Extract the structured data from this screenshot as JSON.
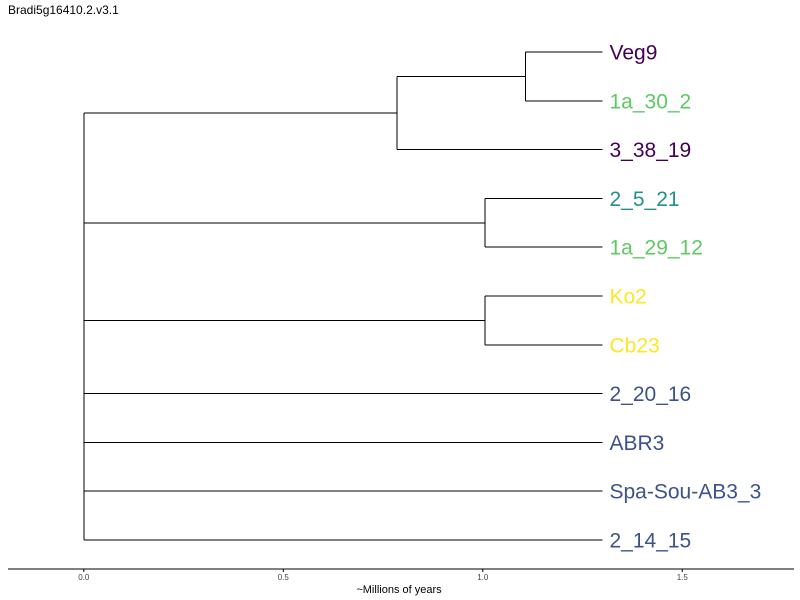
{
  "title": "Bradi5g16410.2.v3.1",
  "axis": {
    "xlabel": "~Millions of years",
    "ticks": [
      "0.0",
      "0.5",
      "1.0",
      "1.5"
    ],
    "tick_values": [
      0,
      0.5,
      1.0,
      1.5
    ],
    "xlim": [
      -0.19,
      1.78
    ]
  },
  "colors": {
    "branch": "#000000",
    "tick_text": "#444444"
  },
  "tips": [
    {
      "label": "Veg9",
      "color": "#440154"
    },
    {
      "label": "1a_30_2",
      "color": "#5ec962"
    },
    {
      "label": "3_38_19",
      "color": "#440154"
    },
    {
      "label": "2_5_21",
      "color": "#21918c"
    },
    {
      "label": "1a_29_12",
      "color": "#5ec962"
    },
    {
      "label": "Ko2",
      "color": "#fde725"
    },
    {
      "label": "Cb23",
      "color": "#fde725"
    },
    {
      "label": "2_20_16",
      "color": "#3b528b"
    },
    {
      "label": "ABR3",
      "color": "#3b528b"
    },
    {
      "label": "Spa-Sou-AB3_3",
      "color": "#3b528b"
    },
    {
      "label": "2_14_15",
      "color": "#3b528b"
    }
  ],
  "tree": {
    "tip_depth": 1.3,
    "root": {
      "depth": 0,
      "children": [
        {
          "depth": 0.785,
          "children": [
            {
              "depth": 1.107,
              "children": [
                {
                  "tip": 0
                },
                {
                  "tip": 1
                }
              ]
            },
            {
              "tip": 2
            }
          ]
        },
        {
          "depth": 1.005,
          "children": [
            {
              "tip": 3
            },
            {
              "tip": 4
            }
          ]
        },
        {
          "depth": 1.005,
          "children": [
            {
              "tip": 5
            },
            {
              "tip": 6
            }
          ]
        },
        {
          "tip": 7
        },
        {
          "tip": 8
        },
        {
          "tip": 9
        },
        {
          "tip": 10
        }
      ]
    }
  }
}
